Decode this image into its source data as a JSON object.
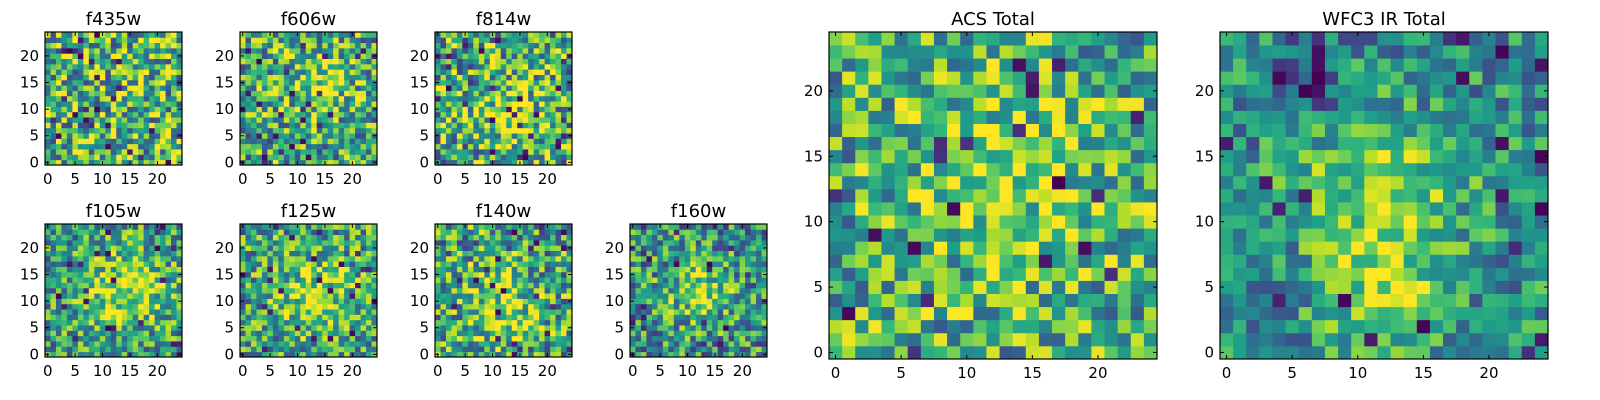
{
  "figure": {
    "panel_titles": [
      "f435w",
      "f606w",
      "f814w",
      "f105w",
      "f125w",
      "f140w",
      "f160w",
      "ACS Total",
      "WFC3 IR Total"
    ]
  },
  "chart_data": [
    {
      "type": "heatmap",
      "title": "f435w",
      "grid": [
        25,
        25
      ],
      "colormap": "viridis",
      "xlim": [
        -0.5,
        24.5
      ],
      "ylim": [
        -0.5,
        24.5
      ],
      "xticks": [
        0,
        5,
        10,
        15,
        20
      ],
      "yticks": [
        0,
        5,
        10,
        15,
        20
      ],
      "seed": 11,
      "blobs": [],
      "noise": 0.55,
      "base": 0.66
    },
    {
      "type": "heatmap",
      "title": "f606w",
      "grid": [
        25,
        25
      ],
      "colormap": "viridis",
      "xlim": [
        -0.5,
        24.5
      ],
      "ylim": [
        -0.5,
        24.5
      ],
      "xticks": [
        0,
        5,
        10,
        15,
        20
      ],
      "yticks": [
        0,
        5,
        10,
        15,
        20
      ],
      "seed": 23,
      "blobs": [
        [
          14,
          14,
          0.28,
          4
        ]
      ],
      "noise": 0.5,
      "base": 0.6
    },
    {
      "type": "heatmap",
      "title": "f814w",
      "grid": [
        25,
        25
      ],
      "colormap": "viridis",
      "xlim": [
        -0.5,
        24.5
      ],
      "ylim": [
        -0.5,
        24.5
      ],
      "xticks": [
        0,
        5,
        10,
        15,
        20
      ],
      "yticks": [
        0,
        5,
        10,
        15,
        20
      ],
      "seed": 37,
      "blobs": [
        [
          13,
          10,
          0.25,
          5
        ]
      ],
      "noise": 0.55,
      "base": 0.6
    },
    {
      "type": "heatmap",
      "title": "f105w",
      "grid": [
        25,
        25
      ],
      "colormap": "viridis",
      "xlim": [
        -0.5,
        24.5
      ],
      "ylim": [
        -0.5,
        24.5
      ],
      "xticks": [
        0,
        5,
        10,
        15,
        20
      ],
      "yticks": [
        0,
        5,
        10,
        15,
        20
      ],
      "seed": 41,
      "blobs": [
        [
          14,
          12,
          0.35,
          5
        ]
      ],
      "noise": 0.45,
      "base": 0.55
    },
    {
      "type": "heatmap",
      "title": "f125w",
      "grid": [
        25,
        25
      ],
      "colormap": "viridis",
      "xlim": [
        -0.5,
        24.5
      ],
      "ylim": [
        -0.5,
        24.5
      ],
      "xticks": [
        0,
        5,
        10,
        15,
        20
      ],
      "yticks": [
        0,
        5,
        10,
        15,
        20
      ],
      "seed": 53,
      "blobs": [
        [
          13,
          11,
          0.3,
          5
        ]
      ],
      "noise": 0.45,
      "base": 0.57
    },
    {
      "type": "heatmap",
      "title": "f140w",
      "grid": [
        25,
        25
      ],
      "colormap": "viridis",
      "xlim": [
        -0.5,
        24.5
      ],
      "ylim": [
        -0.5,
        24.5
      ],
      "xticks": [
        0,
        5,
        10,
        15,
        20
      ],
      "yticks": [
        0,
        5,
        10,
        15,
        20
      ],
      "seed": 67,
      "blobs": [
        [
          12,
          9,
          0.3,
          5
        ]
      ],
      "noise": 0.5,
      "base": 0.57
    },
    {
      "type": "heatmap",
      "title": "f160w",
      "grid": [
        25,
        25
      ],
      "colormap": "viridis",
      "xlim": [
        -0.5,
        24.5
      ],
      "ylim": [
        -0.5,
        24.5
      ],
      "xticks": [
        0,
        5,
        10,
        15,
        20
      ],
      "yticks": [
        0,
        5,
        10,
        15,
        20
      ],
      "seed": 79,
      "blobs": [
        [
          12,
          12,
          0.32,
          4
        ]
      ],
      "noise": 0.45,
      "base": 0.52
    },
    {
      "type": "heatmap",
      "title": "ACS Total",
      "grid": [
        25,
        25
      ],
      "colormap": "viridis",
      "xlim": [
        -0.5,
        24.5
      ],
      "ylim": [
        -0.5,
        24.5
      ],
      "xticks": [
        0,
        5,
        10,
        15,
        20
      ],
      "yticks": [
        0,
        5,
        10,
        15,
        20
      ],
      "seed": 97,
      "blobs": [
        [
          13,
          13,
          0.25,
          5
        ]
      ],
      "noise": 0.45,
      "base": 0.62
    },
    {
      "type": "heatmap",
      "title": "WFC3 IR Total",
      "grid": [
        25,
        25
      ],
      "colormap": "viridis",
      "xlim": [
        -0.5,
        24.5
      ],
      "ylim": [
        -0.5,
        24.5
      ],
      "xticks": [
        0,
        5,
        10,
        15,
        20
      ],
      "yticks": [
        0,
        5,
        10,
        15,
        20
      ],
      "seed": 109,
      "blobs": [
        [
          12,
          12,
          0.4,
          4
        ],
        [
          12,
          4,
          0.35,
          3
        ],
        [
          6,
          21,
          -0.4,
          2
        ]
      ],
      "noise": 0.35,
      "base": 0.5
    }
  ]
}
